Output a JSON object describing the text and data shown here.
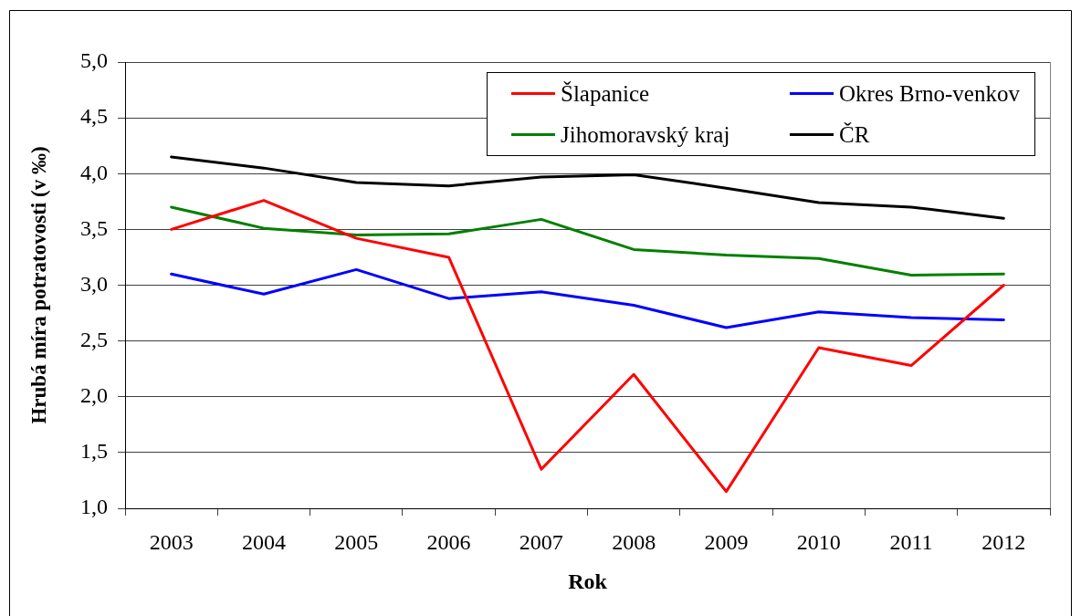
{
  "chart_data": {
    "type": "line",
    "xlabel": "Rok",
    "ylabel": "Hrubá míra potratovosti (v ‰)",
    "categories": [
      "2003",
      "2004",
      "2005",
      "2006",
      "2007",
      "2008",
      "2009",
      "2010",
      "2011",
      "2012"
    ],
    "series": [
      {
        "name": "Šlapanice",
        "color": "#ff0000",
        "values": [
          3.5,
          3.76,
          3.42,
          3.25,
          1.35,
          2.2,
          1.15,
          2.44,
          2.28,
          3.0
        ]
      },
      {
        "name": "Okres Brno-venkov",
        "color": "#0000ff",
        "values": [
          3.1,
          2.92,
          3.14,
          2.88,
          2.94,
          2.82,
          2.62,
          2.76,
          2.71,
          2.69
        ]
      },
      {
        "name": "Jihomoravský kraj",
        "color": "#008000",
        "values": [
          3.7,
          3.51,
          3.45,
          3.46,
          3.59,
          3.32,
          3.27,
          3.24,
          3.09,
          3.1
        ]
      },
      {
        "name": "ČR",
        "color": "#000000",
        "values": [
          4.15,
          4.05,
          3.92,
          3.89,
          3.97,
          3.99,
          3.87,
          3.74,
          3.7,
          3.6
        ]
      }
    ],
    "ylim": [
      1,
      5
    ],
    "yticks": [
      {
        "value": 1,
        "label": "1,0"
      },
      {
        "value": 1.5,
        "label": "1,5"
      },
      {
        "value": 2,
        "label": "2,0"
      },
      {
        "value": 2.5,
        "label": "2,5"
      },
      {
        "value": 3,
        "label": "3,0"
      },
      {
        "value": 3.5,
        "label": "3,5"
      },
      {
        "value": 4,
        "label": "4,0"
      },
      {
        "value": 4.5,
        "label": "4,5"
      },
      {
        "value": 5,
        "label": "5,0"
      }
    ],
    "grid": "y",
    "legend": "top right",
    "marker": "none",
    "line_style": "solid"
  }
}
